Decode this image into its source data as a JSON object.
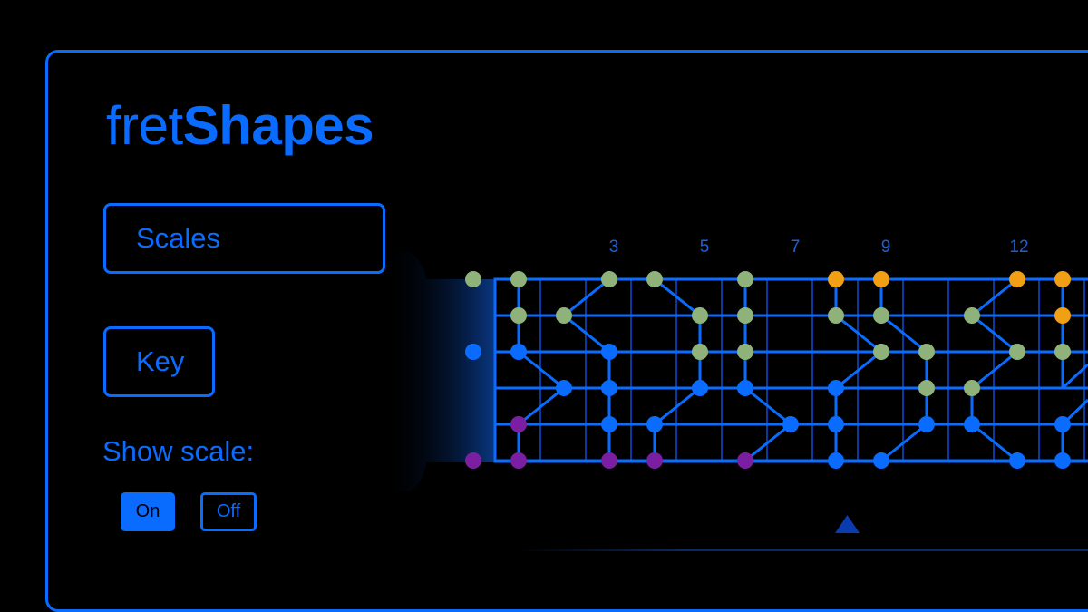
{
  "app": {
    "title_light": "fret",
    "title_bold": "Shapes"
  },
  "buttons": {
    "scales": "Scales",
    "key": "Key"
  },
  "show_scale": {
    "label": "Show scale:",
    "on": "On",
    "off": "Off",
    "selected": "On"
  },
  "fretboard": {
    "fret_markers": [
      "3",
      "5",
      "7",
      "9",
      "12"
    ],
    "colors": {
      "accent": "#0a6cff",
      "green": "#8fb27a",
      "blue": "#0a6cff",
      "purple": "#7b1fa2",
      "orange": "#f0a012"
    }
  }
}
